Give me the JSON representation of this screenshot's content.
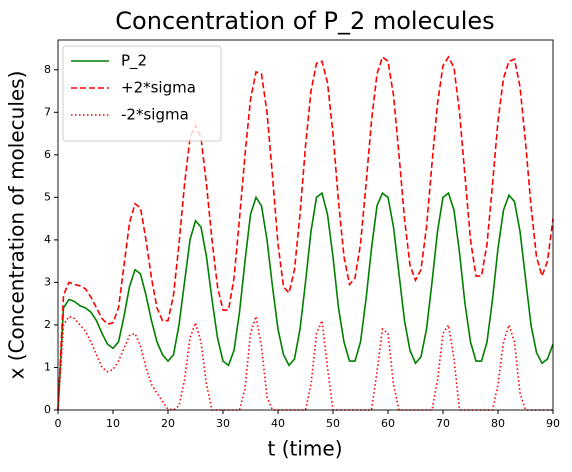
{
  "chart_data": {
    "type": "line",
    "title": "Concentration of P_2 molecules",
    "x_label": "t (time)",
    "y_label": "x (Concentration of molecules)",
    "x": [
      0,
      1,
      2,
      3,
      4,
      5,
      6,
      7,
      8,
      9,
      10,
      11,
      12,
      13,
      14,
      15,
      16,
      17,
      18,
      19,
      20,
      21,
      22,
      23,
      24,
      25,
      26,
      27,
      28,
      29,
      30,
      31,
      32,
      33,
      34,
      35,
      36,
      37,
      38,
      39,
      40,
      41,
      42,
      43,
      44,
      45,
      46,
      47,
      48,
      49,
      50,
      51,
      52,
      53,
      54,
      55,
      56,
      57,
      58,
      59,
      60,
      61,
      62,
      63,
      64,
      65,
      66,
      67,
      68,
      69,
      70,
      71,
      72,
      73,
      74,
      75,
      76,
      77,
      78,
      79,
      80,
      81,
      82,
      83,
      84,
      85,
      86,
      87,
      88,
      89,
      90
    ],
    "series": [
      {
        "name": "P_2",
        "color": "#008000",
        "linestyle": "solid",
        "values": [
          0,
          2.4,
          2.6,
          2.55,
          2.45,
          2.4,
          2.3,
          2.1,
          1.8,
          1.55,
          1.45,
          1.6,
          2.2,
          2.9,
          3.3,
          3.2,
          2.7,
          2.1,
          1.6,
          1.3,
          1.15,
          1.3,
          2.0,
          3.0,
          4.0,
          4.45,
          4.3,
          3.6,
          2.6,
          1.7,
          1.15,
          1.05,
          1.4,
          2.3,
          3.5,
          4.6,
          5.0,
          4.8,
          4.0,
          2.9,
          1.9,
          1.3,
          1.05,
          1.2,
          1.9,
          3.0,
          4.2,
          5.0,
          5.1,
          4.6,
          3.6,
          2.4,
          1.6,
          1.15,
          1.15,
          1.6,
          2.6,
          3.8,
          4.8,
          5.1,
          5.0,
          4.3,
          3.2,
          2.1,
          1.4,
          1.1,
          1.25,
          1.9,
          3.0,
          4.2,
          5.0,
          5.1,
          4.7,
          3.7,
          2.5,
          1.6,
          1.15,
          1.15,
          1.6,
          2.6,
          3.8,
          4.7,
          5.05,
          4.9,
          4.2,
          3.1,
          2.0,
          1.35,
          1.1,
          1.2,
          1.55
        ]
      },
      {
        "name": "+2*sigma",
        "color": "#ff0000",
        "linestyle": "dashed",
        "values": [
          0,
          2.7,
          3.0,
          2.95,
          2.92,
          2.85,
          2.65,
          2.4,
          2.15,
          2.02,
          2.05,
          2.4,
          3.4,
          4.4,
          4.85,
          4.75,
          4.0,
          3.1,
          2.4,
          2.1,
          2.1,
          2.7,
          3.9,
          5.3,
          6.4,
          6.7,
          6.4,
          5.3,
          4.0,
          2.9,
          2.35,
          2.35,
          3.1,
          4.5,
          6.0,
          7.3,
          7.95,
          7.9,
          7.0,
          5.5,
          3.9,
          2.9,
          2.75,
          3.3,
          4.6,
          6.2,
          7.5,
          8.15,
          8.2,
          7.7,
          6.5,
          4.9,
          3.6,
          2.95,
          3.1,
          3.9,
          5.3,
          6.8,
          7.9,
          8.3,
          8.2,
          7.4,
          6.0,
          4.5,
          3.4,
          3.05,
          3.3,
          4.3,
          5.8,
          7.2,
          8.1,
          8.3,
          8.05,
          7.0,
          5.5,
          4.0,
          3.15,
          3.15,
          3.9,
          5.3,
          6.8,
          7.8,
          8.2,
          8.25,
          7.6,
          6.3,
          4.8,
          3.6,
          3.15,
          3.5,
          4.5
        ]
      },
      {
        "name": "-2*sigma",
        "color": "#ff0000",
        "linestyle": "dotted",
        "values": [
          0,
          2.0,
          2.2,
          2.15,
          2.0,
          1.85,
          1.6,
          1.3,
          1.0,
          0.9,
          0.95,
          1.15,
          1.45,
          1.75,
          1.8,
          1.5,
          1.0,
          0.6,
          0.4,
          0.2,
          0.02,
          0,
          0.1,
          0.7,
          1.7,
          2.05,
          1.6,
          0.6,
          0,
          0,
          0,
          0,
          0,
          0,
          0.5,
          1.8,
          2.2,
          1.5,
          0.3,
          0,
          0,
          0,
          0,
          0,
          0,
          0,
          0.6,
          1.8,
          2.1,
          1.0,
          0,
          0,
          0,
          0,
          0,
          0,
          0,
          0,
          0.9,
          1.9,
          1.8,
          0.6,
          0,
          0,
          0,
          0,
          0,
          0,
          0,
          0.7,
          1.8,
          2.0,
          1.2,
          0,
          0,
          0,
          0,
          0,
          0,
          0,
          0.6,
          1.6,
          2.0,
          1.6,
          0.4,
          0,
          0,
          0,
          0,
          0,
          0
        ]
      }
    ],
    "xlim": [
      0,
      90
    ],
    "xticks": [
      0,
      10,
      20,
      30,
      40,
      50,
      60,
      70,
      80,
      90
    ],
    "ylim": [
      0,
      8.7
    ],
    "yticks": [
      0,
      1,
      2,
      3,
      4,
      5,
      6,
      7,
      8
    ],
    "legend": "upper left"
  }
}
